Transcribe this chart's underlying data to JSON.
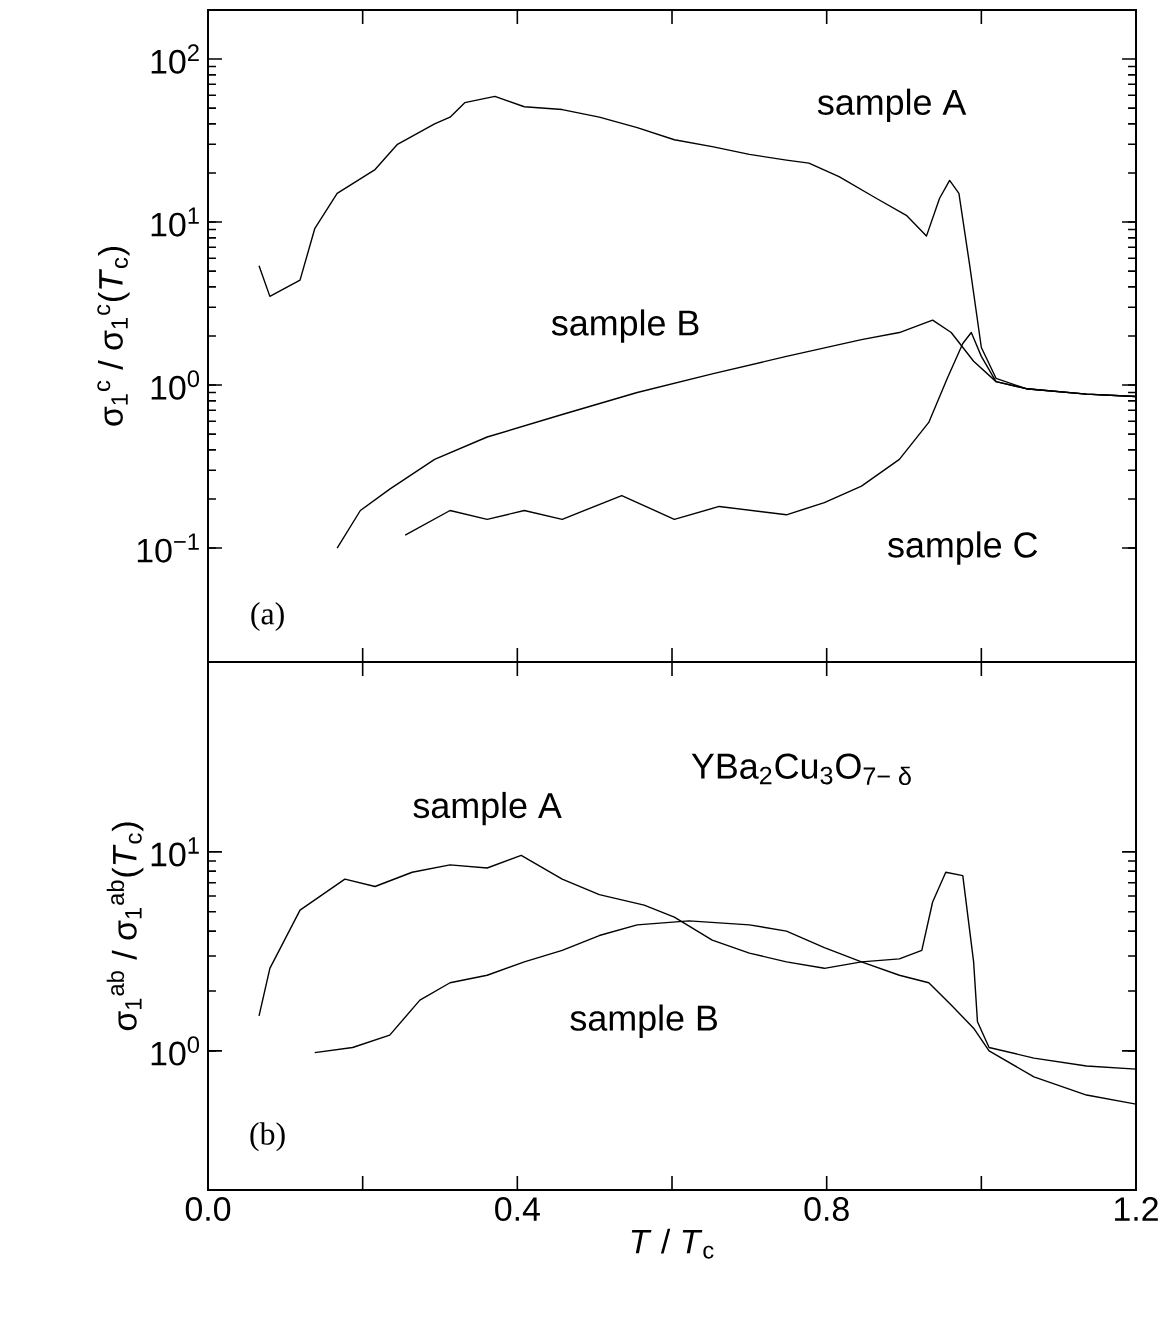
{
  "chart_data": [
    {
      "type": "line",
      "ylabel": "σ$_{1}$$^{c}$ / σ$_{1}$$^{c}$(*T*$_{c}$)",
      "log": "y",
      "tick_labels": "y",
      "xlim": [
        0,
        1.2
      ],
      "ylim": [
        0.02,
        200
      ],
      "xticks": [
        0,
        {
          "value": 0.2,
          "label": null
        },
        0.4,
        {
          "value": 0.6,
          "label": null
        },
        0.8,
        {
          "value": 1.0,
          "label": null
        },
        1.2
      ],
      "yticks": [
        {
          "value": 0.1,
          "label": "10$^{−1}$"
        },
        {
          "value": 1,
          "label": "10$^{0}$"
        },
        {
          "value": 10,
          "label": "10$^{1}$"
        },
        {
          "value": 100,
          "label": "10$^{2}$"
        }
      ],
      "annotations": [
        "(a)"
      ],
      "series": [
        {
          "name": "sample A",
          "color": "#000000",
          "x": [
            0.066,
            0.08,
            0.119,
            0.138,
            0.167,
            0.216,
            0.245,
            0.293,
            0.313,
            0.332,
            0.371,
            0.409,
            0.458,
            0.506,
            0.555,
            0.603,
            0.652,
            0.7,
            0.748,
            0.777,
            0.816,
            0.864,
            0.903,
            0.929,
            0.946,
            0.959,
            0.971,
            0.985,
            1.0,
            1.019,
            1.058,
            1.136,
            1.2
          ],
          "values": [
            5.4,
            3.5,
            4.4,
            9.1,
            15,
            21,
            30,
            40,
            44,
            54,
            59,
            51,
            49,
            44,
            38,
            32,
            29,
            26,
            24,
            23,
            19,
            14,
            11,
            8.2,
            14,
            18,
            15,
            5.4,
            1.7,
            1.1,
            0.95,
            0.88,
            0.85
          ]
        },
        {
          "name": "sample B",
          "color": "#000000",
          "x": [
            0.167,
            0.197,
            0.235,
            0.293,
            0.361,
            0.458,
            0.555,
            0.652,
            0.748,
            0.845,
            0.894,
            0.937,
            0.961,
            0.99,
            1.019,
            1.058,
            1.136,
            1.2
          ],
          "values": [
            0.1,
            0.17,
            0.23,
            0.35,
            0.48,
            0.66,
            0.9,
            1.17,
            1.5,
            1.9,
            2.1,
            2.5,
            2.1,
            1.4,
            1.05,
            0.95,
            0.88,
            0.85
          ]
        },
        {
          "name": "sample C",
          "color": "#000000",
          "x": [
            0.255,
            0.313,
            0.361,
            0.409,
            0.458,
            0.535,
            0.603,
            0.661,
            0.748,
            0.797,
            0.845,
            0.894,
            0.932,
            0.956,
            0.976,
            0.987,
            1.0,
            1.019,
            1.058,
            1.136,
            1.2
          ],
          "values": [
            0.12,
            0.17,
            0.15,
            0.17,
            0.15,
            0.21,
            0.15,
            0.18,
            0.16,
            0.19,
            0.24,
            0.35,
            0.59,
            1.1,
            1.8,
            2.1,
            1.5,
            1.05,
            0.95,
            0.88,
            0.85
          ]
        }
      ]
    },
    {
      "type": "line",
      "xlabel": "*T* / *T*$_{c}$",
      "ylabel": "σ$_{1}$$^{ab}$ / σ$_{1}$$^{ab}$(*T*$_{c}$)",
      "log": "y",
      "xlim": [
        0,
        1.2
      ],
      "ylim": [
        0.2,
        90
      ],
      "xticks": [
        {
          "value": 0,
          "label": "0.0"
        },
        {
          "value": 0.2,
          "label": null
        },
        0.4,
        {
          "value": 0.6,
          "label": null
        },
        0.8,
        {
          "value": 1.0,
          "label": null
        },
        1.2
      ],
      "yticks": [
        {
          "value": 1,
          "label": "10$^{0}$"
        },
        {
          "value": 10,
          "label": "10$^{1}$"
        }
      ],
      "annotations": [
        "(b)",
        "YBa$_{2}$Cu$_{3}$O$_{7− δ}$"
      ],
      "series": [
        {
          "name": "sample A",
          "color": "#000000",
          "x": [
            0.066,
            0.08,
            0.119,
            0.148,
            0.177,
            0.216,
            0.264,
            0.313,
            0.361,
            0.405,
            0.458,
            0.506,
            0.564,
            0.603,
            0.652,
            0.7,
            0.748,
            0.797,
            0.845,
            0.894,
            0.923,
            0.937,
            0.954,
            0.976,
            0.99,
            0.995,
            1.01,
            1.068,
            1.136,
            1.2
          ],
          "values": [
            1.5,
            2.6,
            5.1,
            6.1,
            7.3,
            6.7,
            7.9,
            8.6,
            8.3,
            9.6,
            7.3,
            6.1,
            5.4,
            4.7,
            3.6,
            3.1,
            2.8,
            2.6,
            2.8,
            2.9,
            3.2,
            5.6,
            7.9,
            7.6,
            2.8,
            1.4,
            1.04,
            0.92,
            0.84,
            0.81
          ]
        },
        {
          "name": "sample B",
          "color": "#000000",
          "x": [
            0.138,
            0.187,
            0.235,
            0.274,
            0.313,
            0.361,
            0.409,
            0.458,
            0.506,
            0.555,
            0.622,
            0.7,
            0.748,
            0.797,
            0.845,
            0.894,
            0.932,
            0.961,
            0.99,
            1.01,
            1.068,
            1.136,
            1.2
          ],
          "values": [
            0.98,
            1.04,
            1.2,
            1.8,
            2.2,
            2.4,
            2.8,
            3.2,
            3.8,
            4.3,
            4.5,
            4.3,
            4.0,
            3.3,
            2.8,
            2.4,
            2.2,
            1.7,
            1.3,
            1.0,
            0.74,
            0.6,
            0.54
          ]
        }
      ]
    }
  ]
}
